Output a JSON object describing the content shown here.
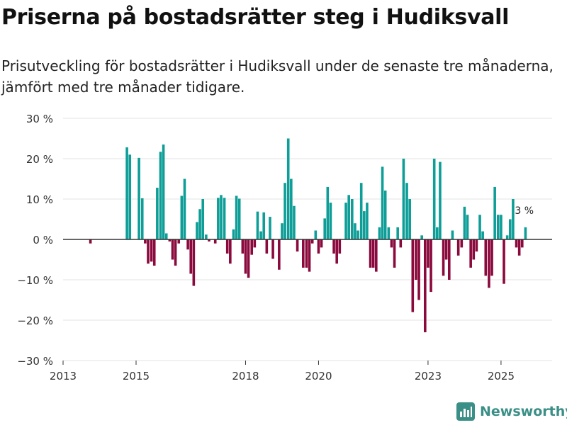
{
  "title": "Priserna på bostadsrätter steg i Hudiksvall",
  "subtitle": "Prisutveckling för bostadsrätter i Hudiksvall under de senaste tre månaderna, jämfört med tre månader tidigare.",
  "brand": "Newsworthy",
  "colors": {
    "positive": "#0e9e97",
    "negative": "#8a0a3d",
    "grid": "#e3e3e3",
    "zero": "#333333",
    "brand": "#3a8f86"
  },
  "chart_data": {
    "type": "bar",
    "title": "Priserna på bostadsrätter steg i Hudiksvall",
    "xlabel": "",
    "ylabel": "",
    "ylim": [
      -30,
      30
    ],
    "yticks": [
      30,
      20,
      10,
      0,
      -10,
      -20,
      -30
    ],
    "ytick_labels": [
      "30 %",
      "20 %",
      "10 %",
      "0 %",
      "−10 %",
      "−20 %",
      "−30 %"
    ],
    "xlim": [
      2013,
      2026.4
    ],
    "xticks": [
      2013,
      2015,
      2018,
      2020,
      2023,
      2025
    ],
    "xtick_labels": [
      "2013",
      "2015",
      "2018",
      "2020",
      "2023",
      "2025"
    ],
    "last_label": "3 %",
    "series": [
      {
        "name": "Prisutveckling",
        "points": [
          {
            "x": 2013.75,
            "y": -1
          },
          {
            "x": 2014.75,
            "y": 22.8
          },
          {
            "x": 2014.83,
            "y": 21
          },
          {
            "x": 2015.08,
            "y": 20.2
          },
          {
            "x": 2015.17,
            "y": 10.2
          },
          {
            "x": 2015.25,
            "y": -1
          },
          {
            "x": 2015.33,
            "y": -6
          },
          {
            "x": 2015.42,
            "y": -5.5
          },
          {
            "x": 2015.5,
            "y": -6.5
          },
          {
            "x": 2015.58,
            "y": 12.8
          },
          {
            "x": 2015.67,
            "y": 21.7
          },
          {
            "x": 2015.75,
            "y": 23.5
          },
          {
            "x": 2015.83,
            "y": 1.5
          },
          {
            "x": 2015.92,
            "y": -0.5
          },
          {
            "x": 2016.0,
            "y": -5
          },
          {
            "x": 2016.08,
            "y": -6.5
          },
          {
            "x": 2016.17,
            "y": -1
          },
          {
            "x": 2016.25,
            "y": 10.8
          },
          {
            "x": 2016.33,
            "y": 15
          },
          {
            "x": 2016.42,
            "y": -2.5
          },
          {
            "x": 2016.5,
            "y": -8.5
          },
          {
            "x": 2016.58,
            "y": -11.5
          },
          {
            "x": 2016.67,
            "y": 4.3
          },
          {
            "x": 2016.75,
            "y": 7.5
          },
          {
            "x": 2016.83,
            "y": 10
          },
          {
            "x": 2016.92,
            "y": 1.2
          },
          {
            "x": 2017.0,
            "y": -0.5
          },
          {
            "x": 2017.17,
            "y": -1
          },
          {
            "x": 2017.25,
            "y": 10.3
          },
          {
            "x": 2017.33,
            "y": 11
          },
          {
            "x": 2017.42,
            "y": 10.3
          },
          {
            "x": 2017.5,
            "y": -3.5
          },
          {
            "x": 2017.58,
            "y": -6
          },
          {
            "x": 2017.67,
            "y": 2.5
          },
          {
            "x": 2017.75,
            "y": 10.8
          },
          {
            "x": 2017.83,
            "y": 10.1
          },
          {
            "x": 2017.92,
            "y": -3.5
          },
          {
            "x": 2018.0,
            "y": -8.5
          },
          {
            "x": 2018.08,
            "y": -9.5
          },
          {
            "x": 2018.17,
            "y": -3.8
          },
          {
            "x": 2018.25,
            "y": -2
          },
          {
            "x": 2018.33,
            "y": 6.9
          },
          {
            "x": 2018.42,
            "y": 2
          },
          {
            "x": 2018.5,
            "y": 6.7
          },
          {
            "x": 2018.58,
            "y": -3.5
          },
          {
            "x": 2018.67,
            "y": 5.6
          },
          {
            "x": 2018.75,
            "y": -4.8
          },
          {
            "x": 2018.92,
            "y": -7.5
          },
          {
            "x": 2019.0,
            "y": 4
          },
          {
            "x": 2019.08,
            "y": 14
          },
          {
            "x": 2019.17,
            "y": 25
          },
          {
            "x": 2019.25,
            "y": 15
          },
          {
            "x": 2019.33,
            "y": 8.3
          },
          {
            "x": 2019.42,
            "y": -3
          },
          {
            "x": 2019.58,
            "y": -7
          },
          {
            "x": 2019.67,
            "y": -7
          },
          {
            "x": 2019.75,
            "y": -8
          },
          {
            "x": 2019.83,
            "y": -1
          },
          {
            "x": 2019.92,
            "y": 2.2
          },
          {
            "x": 2020.0,
            "y": -3.5
          },
          {
            "x": 2020.08,
            "y": -2
          },
          {
            "x": 2020.17,
            "y": 5.2
          },
          {
            "x": 2020.25,
            "y": 13
          },
          {
            "x": 2020.33,
            "y": 9.1
          },
          {
            "x": 2020.42,
            "y": -3.5
          },
          {
            "x": 2020.5,
            "y": -6
          },
          {
            "x": 2020.58,
            "y": -3.5
          },
          {
            "x": 2020.75,
            "y": 9.1
          },
          {
            "x": 2020.83,
            "y": 11
          },
          {
            "x": 2020.92,
            "y": 10
          },
          {
            "x": 2021.0,
            "y": 4
          },
          {
            "x": 2021.08,
            "y": 2.2
          },
          {
            "x": 2021.17,
            "y": 14
          },
          {
            "x": 2021.25,
            "y": 7
          },
          {
            "x": 2021.33,
            "y": 9.1
          },
          {
            "x": 2021.42,
            "y": -7
          },
          {
            "x": 2021.5,
            "y": -7
          },
          {
            "x": 2021.58,
            "y": -8
          },
          {
            "x": 2021.67,
            "y": 3
          },
          {
            "x": 2021.75,
            "y": 18
          },
          {
            "x": 2021.83,
            "y": 12.1
          },
          {
            "x": 2021.92,
            "y": 3
          },
          {
            "x": 2022.0,
            "y": -2
          },
          {
            "x": 2022.08,
            "y": -7
          },
          {
            "x": 2022.17,
            "y": 3
          },
          {
            "x": 2022.25,
            "y": -2
          },
          {
            "x": 2022.33,
            "y": 20
          },
          {
            "x": 2022.42,
            "y": 14
          },
          {
            "x": 2022.5,
            "y": 10
          },
          {
            "x": 2022.58,
            "y": -18
          },
          {
            "x": 2022.67,
            "y": -10
          },
          {
            "x": 2022.75,
            "y": -15
          },
          {
            "x": 2022.83,
            "y": 1
          },
          {
            "x": 2022.92,
            "y": -23
          },
          {
            "x": 2023.0,
            "y": -7
          },
          {
            "x": 2023.08,
            "y": -13
          },
          {
            "x": 2023.17,
            "y": 20
          },
          {
            "x": 2023.25,
            "y": 3
          },
          {
            "x": 2023.33,
            "y": 19.2
          },
          {
            "x": 2023.42,
            "y": -9
          },
          {
            "x": 2023.5,
            "y": -5
          },
          {
            "x": 2023.58,
            "y": -10
          },
          {
            "x": 2023.67,
            "y": 2.2
          },
          {
            "x": 2023.83,
            "y": -4
          },
          {
            "x": 2023.92,
            "y": -2
          },
          {
            "x": 2024.0,
            "y": 8.1
          },
          {
            "x": 2024.08,
            "y": 6.1
          },
          {
            "x": 2024.17,
            "y": -7
          },
          {
            "x": 2024.25,
            "y": -5
          },
          {
            "x": 2024.33,
            "y": -3
          },
          {
            "x": 2024.42,
            "y": 6.1
          },
          {
            "x": 2024.5,
            "y": 2
          },
          {
            "x": 2024.58,
            "y": -9
          },
          {
            "x": 2024.67,
            "y": -12
          },
          {
            "x": 2024.75,
            "y": -9
          },
          {
            "x": 2024.83,
            "y": 13
          },
          {
            "x": 2024.92,
            "y": 6.1
          },
          {
            "x": 2025.0,
            "y": 6.1
          },
          {
            "x": 2025.08,
            "y": -11
          },
          {
            "x": 2025.17,
            "y": 1
          },
          {
            "x": 2025.25,
            "y": 5
          },
          {
            "x": 2025.33,
            "y": 10
          },
          {
            "x": 2025.42,
            "y": -2
          },
          {
            "x": 2025.5,
            "y": -4
          },
          {
            "x": 2025.58,
            "y": -2
          },
          {
            "x": 2025.67,
            "y": 3
          }
        ]
      }
    ]
  }
}
